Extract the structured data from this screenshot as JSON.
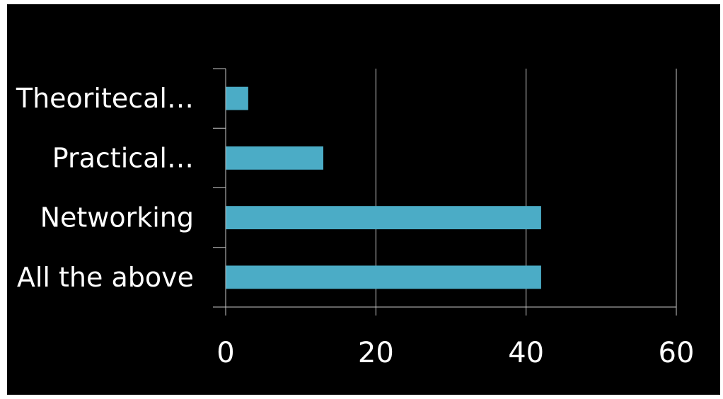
{
  "chart_data": {
    "type": "bar",
    "orientation": "horizontal",
    "categories": [
      "Theoritecal…",
      "Practical…",
      "Networking",
      "All the above"
    ],
    "values": [
      3,
      13,
      42,
      42
    ],
    "xlim": [
      0,
      60
    ],
    "xticks": [
      0,
      20,
      40,
      60
    ],
    "title": "",
    "xlabel": "",
    "ylabel": "",
    "grid": "vertical",
    "legend": "none",
    "colors": {
      "background": "#000000",
      "bar": "#4bacc6",
      "gridline": "#c8c8c8",
      "text": "#ffffff"
    }
  }
}
